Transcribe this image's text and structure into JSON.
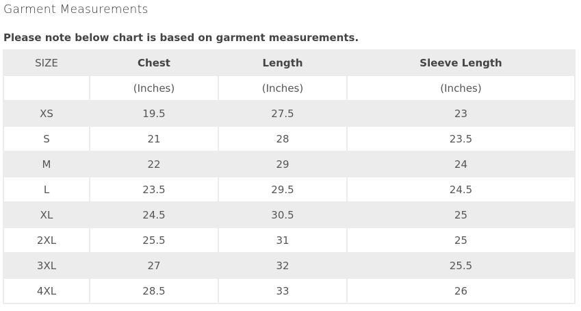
{
  "title": "Garment Measurements",
  "note": "Please note below chart is based on garment measurements.",
  "table": {
    "headers": [
      "SIZE",
      "Chest",
      "Length",
      "Sleeve Length"
    ],
    "units": [
      "",
      "(Inches)",
      "(Inches)",
      "(Inches)"
    ],
    "rows": [
      [
        "XS",
        "19.5",
        "27.5",
        "23"
      ],
      [
        "S",
        "21",
        "28",
        "23.5"
      ],
      [
        "M",
        "22",
        "29",
        "24"
      ],
      [
        "L",
        "23.5",
        "29.5",
        "24.5"
      ],
      [
        "XL",
        "24.5",
        "30.5",
        "25"
      ],
      [
        "2XL",
        "25.5",
        "31",
        "25"
      ],
      [
        "3XL",
        "27",
        "32",
        "25.5"
      ],
      [
        "4XL",
        "28.5",
        "33",
        "26"
      ]
    ]
  }
}
